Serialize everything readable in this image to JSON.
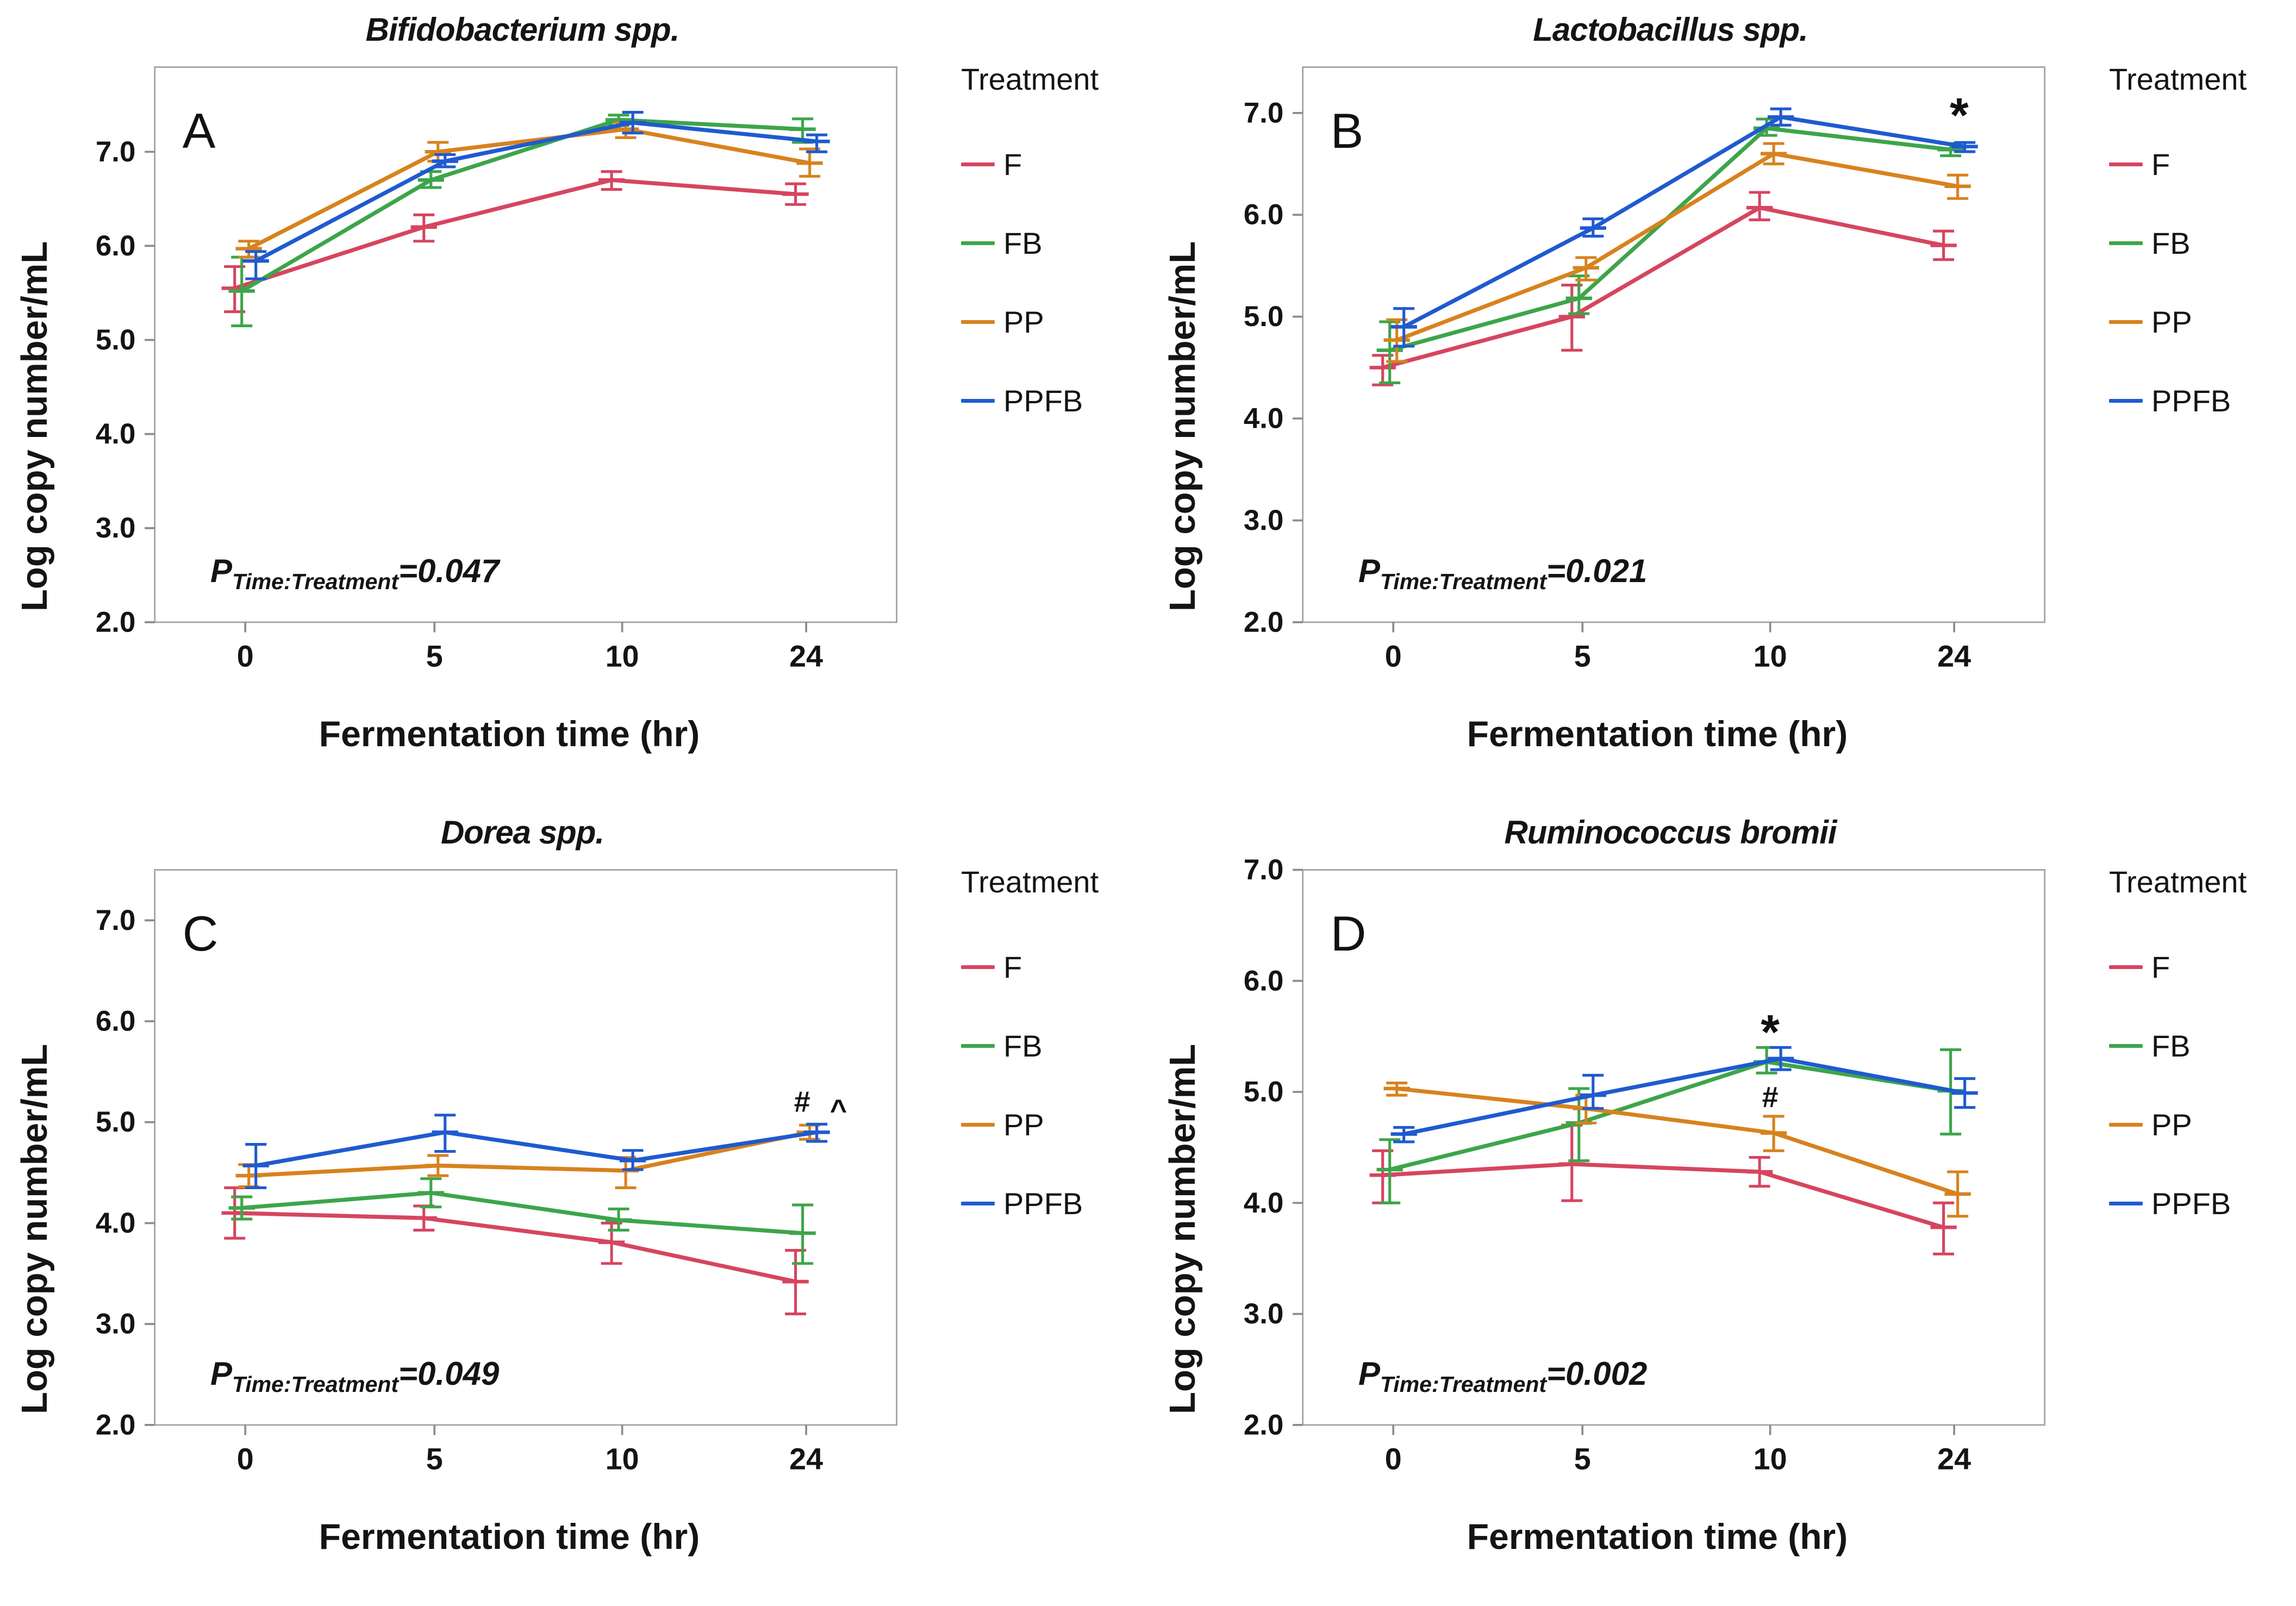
{
  "figure": {
    "legend_title": "Treatment",
    "treatments": [
      {
        "label": "F",
        "color": "#d6455f"
      },
      {
        "label": "FB",
        "color": "#3da54a"
      },
      {
        "label": "PP",
        "color": "#d8821e"
      },
      {
        "label": "PPFB",
        "color": "#1f5ad0"
      }
    ],
    "xlabel": "Fermentation time (hr)",
    "ylabel": "Log copy number/mL",
    "p_prefix": "P",
    "p_sub": "Time:Treatment",
    "plot_border_color": "#a3a3a3",
    "tick_color": "#8c8c8c",
    "text_color": "#141414"
  },
  "chart_data": [
    {
      "type": "line",
      "panel": "A",
      "title": "Bifidobacterium spp.",
      "p_value": "=0.047",
      "categories": [
        "0",
        "5",
        "10",
        "24"
      ],
      "y_ticks": [
        "2.0",
        "3.0",
        "4.0",
        "5.0",
        "6.0",
        "7.0"
      ],
      "ylim": [
        2.0,
        7.9
      ],
      "xlabel": "Fermentation time (hr)",
      "ylabel": "Log copy number/mL",
      "legend_position": "right",
      "grid": false,
      "series": [
        {
          "name": "F",
          "values": [
            5.55,
            6.2,
            6.7,
            6.55
          ],
          "lo": [
            5.3,
            6.05,
            6.6,
            6.44
          ],
          "hi": [
            5.78,
            6.33,
            6.79,
            6.66
          ]
        },
        {
          "name": "FB",
          "values": [
            5.52,
            6.7,
            7.34,
            7.24
          ],
          "lo": [
            5.15,
            6.62,
            7.28,
            7.1
          ],
          "hi": [
            5.88,
            6.79,
            7.39,
            7.35
          ]
        },
        {
          "name": "PP",
          "values": [
            5.97,
            7.0,
            7.24,
            6.88
          ],
          "lo": [
            5.88,
            6.9,
            7.15,
            6.74
          ],
          "hi": [
            6.05,
            7.1,
            7.31,
            7.03
          ]
        },
        {
          "name": "PPFB",
          "values": [
            5.84,
            6.9,
            7.31,
            7.11
          ],
          "lo": [
            5.65,
            6.84,
            7.2,
            7.0
          ],
          "hi": [
            5.94,
            6.97,
            7.42,
            7.18
          ]
        }
      ],
      "annotations": []
    },
    {
      "type": "line",
      "panel": "B",
      "title": "Lactobacillus spp.",
      "p_value": "=0.021",
      "categories": [
        "0",
        "5",
        "10",
        "24"
      ],
      "y_ticks": [
        "2.0",
        "3.0",
        "4.0",
        "5.0",
        "6.0",
        "7.0"
      ],
      "ylim": [
        2.0,
        7.45
      ],
      "xlabel": "Fermentation time (hr)",
      "ylabel": "Log copy number/mL",
      "legend_position": "right",
      "grid": false,
      "series": [
        {
          "name": "F",
          "values": [
            4.5,
            5.0,
            6.07,
            5.7
          ],
          "lo": [
            4.33,
            4.67,
            5.95,
            5.56
          ],
          "hi": [
            4.62,
            5.31,
            6.22,
            5.84
          ]
        },
        {
          "name": "FB",
          "values": [
            4.67,
            5.18,
            6.85,
            6.64
          ],
          "lo": [
            4.35,
            5.03,
            6.78,
            6.58
          ],
          "hi": [
            4.95,
            5.4,
            6.94,
            6.7
          ]
        },
        {
          "name": "PP",
          "values": [
            4.77,
            5.48,
            6.6,
            6.28
          ],
          "lo": [
            4.56,
            5.36,
            6.5,
            6.16
          ],
          "hi": [
            4.97,
            5.58,
            6.7,
            6.39
          ]
        },
        {
          "name": "PPFB",
          "values": [
            4.9,
            5.87,
            6.96,
            6.67
          ],
          "lo": [
            4.71,
            5.79,
            6.88,
            6.62
          ],
          "hi": [
            5.08,
            5.96,
            7.04,
            6.71
          ]
        }
      ],
      "annotations": [
        {
          "text": "*",
          "xi": 3,
          "y": 6.98,
          "dx": 10,
          "size": 96
        }
      ]
    },
    {
      "type": "line",
      "panel": "C",
      "title": "Dorea spp.",
      "p_value": "=0.049",
      "categories": [
        "0",
        "5",
        "10",
        "24"
      ],
      "y_ticks": [
        "2.0",
        "3.0",
        "4.0",
        "5.0",
        "6.0",
        "7.0"
      ],
      "ylim": [
        2.0,
        7.5
      ],
      "xlabel": "Fermentation time (hr)",
      "ylabel": "Log copy number/mL",
      "legend_position": "right",
      "grid": false,
      "series": [
        {
          "name": "F",
          "values": [
            4.1,
            4.05,
            3.81,
            3.42
          ],
          "lo": [
            3.85,
            3.93,
            3.6,
            3.1
          ],
          "hi": [
            4.35,
            4.17,
            4.0,
            3.73
          ]
        },
        {
          "name": "FB",
          "values": [
            4.15,
            4.3,
            4.03,
            3.9
          ],
          "lo": [
            4.04,
            4.16,
            3.93,
            3.6
          ],
          "hi": [
            4.26,
            4.44,
            4.14,
            4.18
          ]
        },
        {
          "name": "PP",
          "values": [
            4.47,
            4.57,
            4.52,
            4.9
          ],
          "lo": [
            4.36,
            4.47,
            4.35,
            4.83
          ],
          "hi": [
            4.58,
            4.67,
            4.65,
            4.97
          ]
        },
        {
          "name": "PPFB",
          "values": [
            4.57,
            4.9,
            4.62,
            4.9
          ],
          "lo": [
            4.35,
            4.71,
            4.53,
            4.81
          ],
          "hi": [
            4.78,
            5.07,
            4.72,
            4.98
          ]
        }
      ],
      "annotations": [
        {
          "text": "#",
          "xi": 3,
          "y": 5.2,
          "dx": -8,
          "size": 58
        },
        {
          "text": "^",
          "xi": 3,
          "y": 5.12,
          "dx": 64,
          "size": 58
        }
      ]
    },
    {
      "type": "line",
      "panel": "D",
      "title": "Ruminococcus bromii",
      "p_value": "=0.002",
      "categories": [
        "0",
        "5",
        "10",
        "24"
      ],
      "y_ticks": [
        "2.0",
        "3.0",
        "4.0",
        "5.0",
        "6.0",
        "7.0"
      ],
      "ylim": [
        2.0,
        7.0
      ],
      "xlabel": "Fermentation time (hr)",
      "ylabel": "Log copy number/mL",
      "legend_position": "right",
      "grid": false,
      "series": [
        {
          "name": "F",
          "values": [
            4.25,
            4.35,
            4.28,
            3.78
          ],
          "lo": [
            4.0,
            4.02,
            4.15,
            3.54
          ],
          "hi": [
            4.47,
            4.7,
            4.41,
            4.0
          ]
        },
        {
          "name": "FB",
          "values": [
            4.3,
            4.72,
            5.27,
            5.01
          ],
          "lo": [
            4.0,
            4.38,
            5.17,
            4.62
          ],
          "hi": [
            4.57,
            5.03,
            5.4,
            5.38
          ]
        },
        {
          "name": "PP",
          "values": [
            5.03,
            4.85,
            4.63,
            4.08
          ],
          "lo": [
            4.97,
            4.72,
            4.47,
            3.88
          ],
          "hi": [
            5.08,
            4.97,
            4.78,
            4.28
          ]
        },
        {
          "name": "PPFB",
          "values": [
            4.62,
            4.97,
            5.3,
            4.99
          ],
          "lo": [
            4.55,
            4.85,
            5.2,
            4.86
          ],
          "hi": [
            4.68,
            5.15,
            5.4,
            5.12
          ]
        }
      ],
      "annotations": [
        {
          "text": "*",
          "xi": 2,
          "y": 5.54,
          "dx": 0,
          "size": 96
        },
        {
          "text": "#",
          "xi": 2,
          "y": 4.95,
          "dx": 0,
          "size": 58
        }
      ]
    }
  ]
}
